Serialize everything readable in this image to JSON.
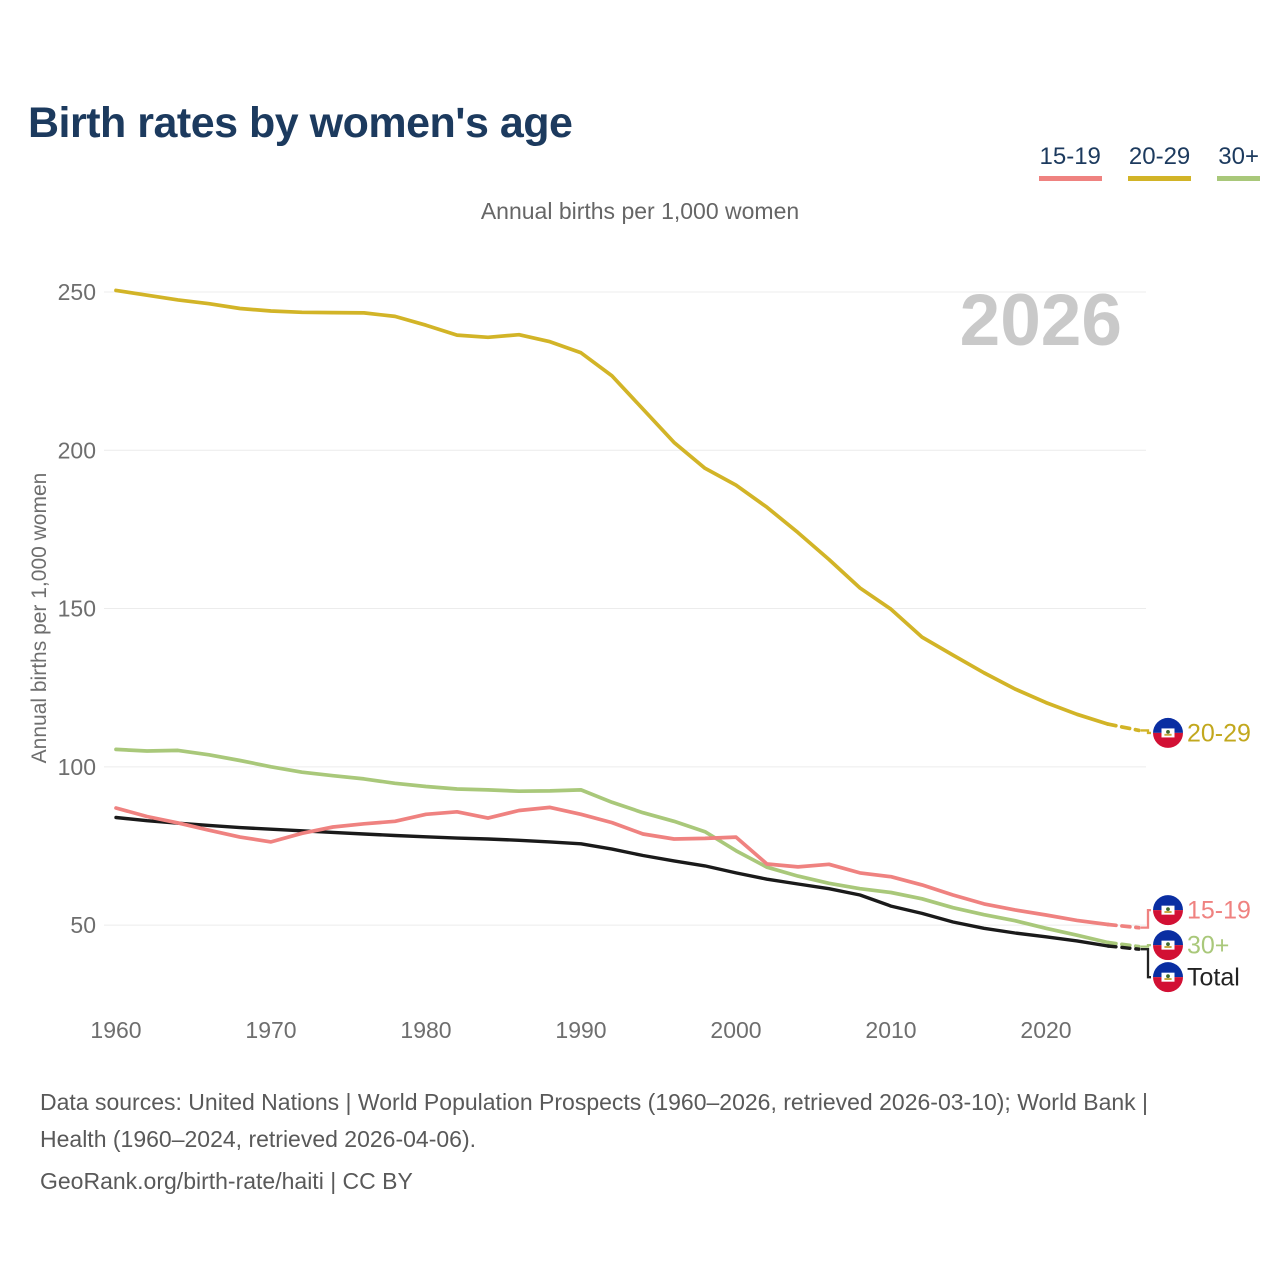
{
  "title": "Birth rates by women's age",
  "subtitle": "Annual births per 1,000 women",
  "watermark_year": "2026",
  "legend": [
    {
      "label": "15-19",
      "color": "#ef8280"
    },
    {
      "label": "20-29",
      "color": "#d2b427"
    },
    {
      "label": "30+",
      "color": "#a9c87a"
    }
  ],
  "y_axis": {
    "title": "Annual births per 1,000 women",
    "ticks": [
      250,
      200,
      150,
      100,
      50
    ]
  },
  "x_axis": {
    "ticks": [
      1960,
      1970,
      1980,
      1990,
      2000,
      2010,
      2020
    ]
  },
  "footer": {
    "sources": "Data sources: United Nations | World Population Prospects (1960–2026, retrieved 2026-03-10); World Bank | Health (1960–2024, retrieved 2026-04-06).",
    "attribution": "GeoRank.org/birth-rate/haiti | CC BY"
  },
  "chart_data": {
    "type": "line",
    "title": "Birth rates by women's age",
    "ylabel": "Annual births per 1,000 women",
    "xlim": [
      1960,
      2026
    ],
    "ylim": [
      30,
      260
    ],
    "grid": "horizontal",
    "legend_position": "top-right",
    "dashed_forecast_from_x": 2024,
    "end_marker": "haiti-flag",
    "x": [
      1960,
      1962,
      1964,
      1966,
      1968,
      1970,
      1972,
      1974,
      1976,
      1978,
      1980,
      1982,
      1984,
      1986,
      1988,
      1990,
      1992,
      1994,
      1996,
      1998,
      2000,
      2002,
      2004,
      2006,
      2008,
      2010,
      2012,
      2014,
      2016,
      2018,
      2020,
      2022,
      2024,
      2026
    ],
    "series": [
      {
        "name": "20-29",
        "color": "#d2b427",
        "label_color": "#c2a81e",
        "values": [
          250.5,
          249,
          247.5,
          246.3,
          244.8,
          244,
          243.6,
          243.5,
          243.4,
          242.3,
          239.5,
          236.4,
          235.7,
          236.5,
          234.3,
          230.8,
          223.5,
          213,
          202.5,
          194.3,
          189,
          182,
          174,
          165.5,
          156.5,
          149.8,
          141,
          135.3,
          129.7,
          124.6,
          120.3,
          116.6,
          113.5,
          111.5
        ]
      },
      {
        "name": "30+",
        "color": "#a9c87a",
        "label_color": "#a9c87a",
        "values": [
          105.5,
          105,
          105.2,
          103.8,
          102,
          100,
          98.3,
          97.2,
          96.2,
          94.8,
          93.8,
          93,
          92.7,
          92.3,
          92.4,
          92.7,
          88.8,
          85.5,
          82.8,
          79.5,
          73.5,
          68.3,
          65.5,
          63.2,
          61.5,
          60.3,
          58.3,
          55.5,
          53.3,
          51.4,
          49,
          46.8,
          44.5,
          43.2
        ]
      },
      {
        "name": "Total",
        "color": "#1a1a1a",
        "label_color": "#222222",
        "values": [
          84,
          83,
          82.2,
          81.5,
          80.8,
          80.3,
          79.8,
          79.3,
          78.8,
          78.3,
          77.9,
          77.5,
          77.2,
          76.8,
          76.3,
          75.7,
          74,
          72,
          70.3,
          68.7,
          66.5,
          64.5,
          63,
          61.5,
          59.5,
          56,
          53.7,
          51,
          49,
          47.5,
          46.3,
          45,
          43.4,
          42.4
        ]
      },
      {
        "name": "15-19",
        "color": "#ef8280",
        "label_color": "#ef8280",
        "values": [
          87,
          84.3,
          82.3,
          80,
          77.8,
          76.3,
          79,
          81,
          82,
          82.8,
          85,
          85.8,
          83.8,
          86.2,
          87.2,
          85,
          82.4,
          78.8,
          77.2,
          77.4,
          77.8,
          69.3,
          68.4,
          69.2,
          66.5,
          65.3,
          62.7,
          59.5,
          56.7,
          54.8,
          53.2,
          51.5,
          50.2,
          49.2
        ]
      }
    ]
  }
}
